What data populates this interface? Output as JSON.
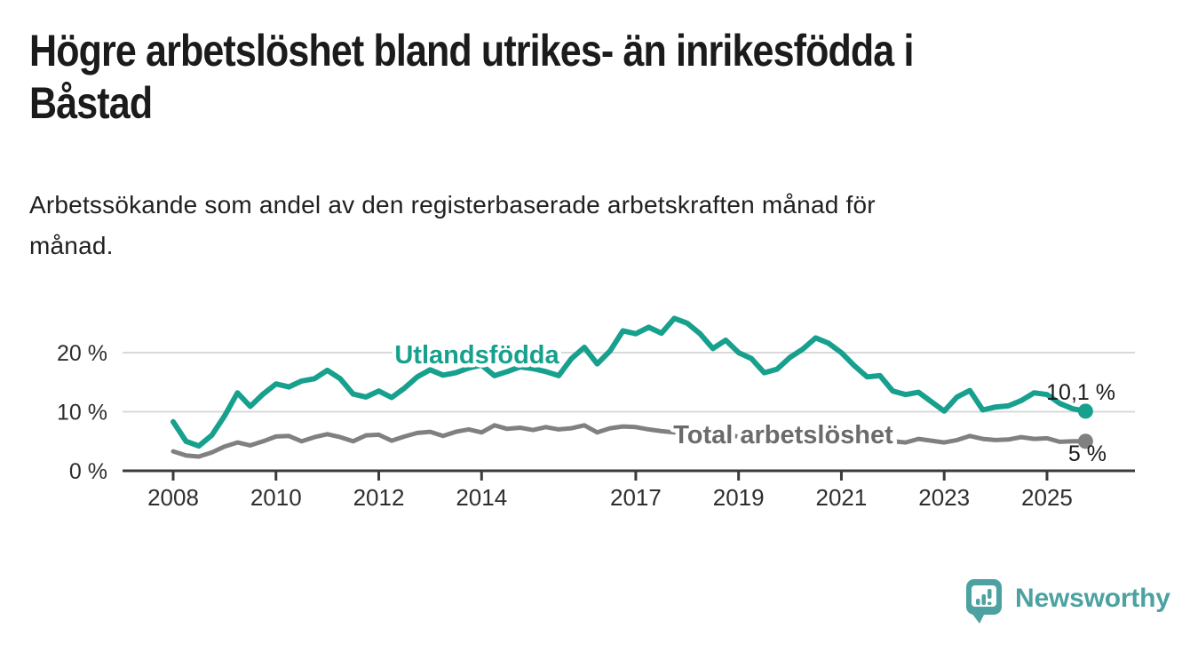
{
  "page": {
    "title": "Högre arbetslöshet bland utrikes- än inrikesfödda i Båstad",
    "title_lines": [
      "Högre arbetslöshet bland utrikes- än inrikesfödda i",
      "Båstad"
    ],
    "subtitle": "Arbetssökande som andel av den registerbaserade arbetskraften månad för månad.",
    "subtitle_lines": [
      "Arbetssökande som andel av den registerbaserade arbetskraften månad för",
      "månad."
    ],
    "background_color": "#ffffff"
  },
  "chart_data": {
    "type": "line",
    "title": "Högre arbetslöshet bland utrikes- än inrikesfödda i Båstad",
    "subtitle": "Arbetssökande som andel av den registerbaserade arbetskraften månad för månad.",
    "unit": "%",
    "x": [
      2008,
      2008.25,
      2008.5,
      2008.75,
      2009,
      2009.25,
      2009.5,
      2009.75,
      2010,
      2010.25,
      2010.5,
      2010.75,
      2011,
      2011.25,
      2011.5,
      2011.75,
      2012,
      2012.25,
      2012.5,
      2012.75,
      2013,
      2013.25,
      2013.5,
      2013.75,
      2014,
      2014.25,
      2014.5,
      2014.75,
      2015,
      2015.25,
      2015.5,
      2015.75,
      2016,
      2016.25,
      2016.5,
      2016.75,
      2017,
      2017.25,
      2017.5,
      2017.75,
      2018,
      2018.25,
      2018.5,
      2018.75,
      2019,
      2019.25,
      2019.5,
      2019.75,
      2020,
      2020.25,
      2020.5,
      2020.75,
      2021,
      2021.25,
      2021.5,
      2021.75,
      2022,
      2022.25,
      2022.5,
      2022.75,
      2023,
      2023.25,
      2023.5,
      2023.75,
      2024,
      2024.25,
      2024.5,
      2024.75,
      2025,
      2025.25,
      2025.5,
      2025.75
    ],
    "series": [
      {
        "name": "Utlandsfödda",
        "color": "#17A08D",
        "end_value": 10.1,
        "end_label": "10,1 %",
        "values": [
          8.3,
          5.0,
          4.2,
          6.0,
          9.3,
          13.2,
          10.9,
          13.0,
          14.7,
          14.2,
          15.2,
          15.6,
          17.0,
          15.6,
          13.0,
          12.5,
          13.5,
          12.4,
          14.0,
          15.9,
          17.1,
          16.2,
          16.6,
          17.4,
          17.9,
          16.1,
          16.8,
          17.6,
          17.3,
          16.8,
          16.1,
          19.0,
          20.9,
          18.1,
          20.3,
          23.7,
          23.2,
          24.3,
          23.3,
          25.8,
          25.0,
          23.2,
          20.7,
          22.1,
          20.0,
          19.0,
          16.6,
          17.2,
          19.2,
          20.6,
          22.5,
          21.6,
          20.0,
          17.8,
          15.9,
          16.1,
          13.5,
          12.9,
          13.3,
          11.7,
          10.1,
          12.5,
          13.6,
          10.3,
          10.8,
          11.0,
          11.9,
          13.2,
          12.9,
          11.4,
          10.5,
          10.1
        ]
      },
      {
        "name": "Total arbetslöshet",
        "color": "#808080",
        "end_value": 5,
        "end_label": "5 %",
        "values": [
          3.3,
          2.6,
          2.4,
          3.1,
          4.1,
          4.8,
          4.3,
          5.0,
          5.8,
          5.9,
          5.0,
          5.7,
          6.2,
          5.7,
          5.0,
          6.0,
          6.1,
          5.1,
          5.8,
          6.4,
          6.6,
          5.9,
          6.6,
          7.0,
          6.5,
          7.7,
          7.1,
          7.3,
          6.9,
          7.4,
          7.0,
          7.2,
          7.7,
          6.5,
          7.2,
          7.5,
          7.4,
          7.0,
          6.7,
          6.5,
          6.3,
          6.0,
          5.8,
          6.0,
          5.8,
          5.5,
          5.4,
          5.6,
          6.0,
          6.5,
          6.8,
          6.6,
          6.3,
          5.9,
          5.5,
          5.3,
          5.0,
          4.8,
          5.4,
          5.1,
          4.8,
          5.2,
          5.9,
          5.4,
          5.2,
          5.3,
          5.7,
          5.4,
          5.5,
          4.9,
          5.0,
          5.0
        ]
      }
    ],
    "x_ticks": [
      2008,
      2010,
      2012,
      2014,
      2017,
      2019,
      2021,
      2023,
      2025
    ],
    "x_tick_labels": [
      "2008",
      "2010",
      "2012",
      "2014",
      "2017",
      "2019",
      "2021",
      "2023",
      "2025"
    ],
    "y_ticks": [
      0,
      10,
      20
    ],
    "y_tick_labels": [
      "0 %",
      "10 %",
      "20 %"
    ],
    "ylim": [
      0,
      27
    ],
    "xlim": [
      2007.3,
      2026.3
    ],
    "grid": "horizontal-only",
    "legend_position": "inline-series-labels",
    "colors": {
      "grid": "#d9d9d9",
      "axis": "#3b3b3b",
      "tick_text": "#2e2e2e",
      "value_label_text": "#1a1a1a"
    }
  },
  "logo": {
    "wordmark": "Newsworthy",
    "color": "#4CA2A0",
    "icon": "newsworthy-speech-bubble-bar-chart-icon"
  }
}
